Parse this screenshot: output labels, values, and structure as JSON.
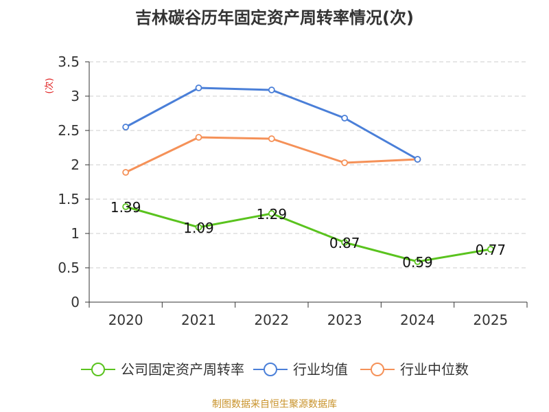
{
  "chart_data": {
    "type": "line",
    "title": "吉林碳谷历年固定资产周转率情况(次)",
    "ylabel": "(次)",
    "xlabel": "",
    "categories": [
      "2020",
      "2021",
      "2022",
      "2023",
      "2024",
      "2025"
    ],
    "ylim": [
      0,
      3.5
    ],
    "yticks": [
      0,
      0.5,
      1,
      1.5,
      2,
      2.5,
      3,
      3.5
    ],
    "ytick_labels": [
      "0",
      "0.5",
      "1",
      "1.5",
      "2",
      "2.5",
      "3",
      "3.5"
    ],
    "grid": true,
    "legend_position": "bottom",
    "series": [
      {
        "name": "公司固定资产周转率",
        "color": "#5ac31e",
        "values": [
          1.39,
          1.09,
          1.29,
          0.87,
          0.59,
          0.77
        ],
        "labels": [
          "1.39",
          "1.09",
          "1.29",
          "0.87",
          "0.59",
          "0.77"
        ]
      },
      {
        "name": "行业均值",
        "color": "#4a7fd8",
        "values": [
          2.55,
          3.12,
          3.09,
          2.68,
          2.08,
          null
        ]
      },
      {
        "name": "行业中位数",
        "color": "#f59158",
        "values": [
          1.89,
          2.4,
          2.38,
          2.03,
          2.08,
          null
        ]
      }
    ]
  },
  "source": "制图数据来自恒生聚源数据库"
}
